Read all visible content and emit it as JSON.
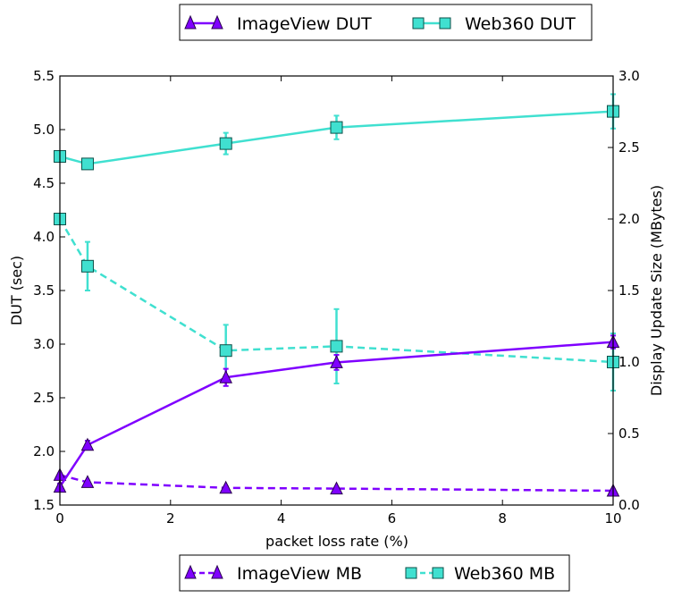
{
  "chart_data": {
    "type": "line",
    "xlabel": "packet loss rate (%)",
    "ylabel_left": "DUT (sec)",
    "ylabel_right": "Display Update Size (MBytes)",
    "xlim": [
      0,
      10
    ],
    "ylim_left": [
      1.5,
      5.5
    ],
    "ylim_right": [
      0.0,
      3.0
    ],
    "x_ticks": [
      "0",
      "2",
      "4",
      "6",
      "8",
      "10"
    ],
    "y_left_ticks": [
      "1.5",
      "2.0",
      "2.5",
      "3.0",
      "3.5",
      "4.0",
      "4.5",
      "5.0",
      "5.5"
    ],
    "y_right_ticks": [
      "0.0",
      "0.5",
      "1.0",
      "1.5",
      "2.0",
      "2.5",
      "3.0"
    ],
    "grid": false,
    "legend_top": {
      "placement": "top-center",
      "entries": [
        "ImageView DUT",
        "Web360 DUT"
      ]
    },
    "legend_bottom": {
      "placement": "bottom-center",
      "entries": [
        "ImageView MB",
        "Web360 MB"
      ]
    },
    "x": [
      0,
      0.5,
      3,
      5,
      10
    ],
    "series": [
      {
        "name": "ImageView DUT",
        "axis": "left",
        "style": "solid",
        "marker": "triangle",
        "color": "#7f00ff",
        "values": [
          1.67,
          2.06,
          2.69,
          2.83,
          3.02
        ],
        "err": [
          0.03,
          0.04,
          0.08,
          0.07,
          0.06
        ]
      },
      {
        "name": "Web360 DUT",
        "axis": "left",
        "style": "solid",
        "marker": "square",
        "color": "#40e0d0",
        "values": [
          4.75,
          4.68,
          4.87,
          5.02,
          5.17
        ],
        "err": [
          0.05,
          0.03,
          0.1,
          0.11,
          0.16
        ]
      },
      {
        "name": "ImageView MB",
        "axis": "right",
        "style": "dashed",
        "marker": "triangle",
        "color": "#7f00ff",
        "values": [
          0.21,
          0.16,
          0.12,
          0.115,
          0.1
        ],
        "err": [
          0.01,
          0.01,
          0.01,
          0.01,
          0.01
        ]
      },
      {
        "name": "Web360 MB",
        "axis": "right",
        "style": "dashed",
        "marker": "square",
        "color": "#40e0d0",
        "values": [
          2.0,
          1.67,
          1.08,
          1.11,
          1.0
        ],
        "err": [
          0.02,
          0.17,
          0.18,
          0.26,
          0.2
        ]
      }
    ]
  }
}
